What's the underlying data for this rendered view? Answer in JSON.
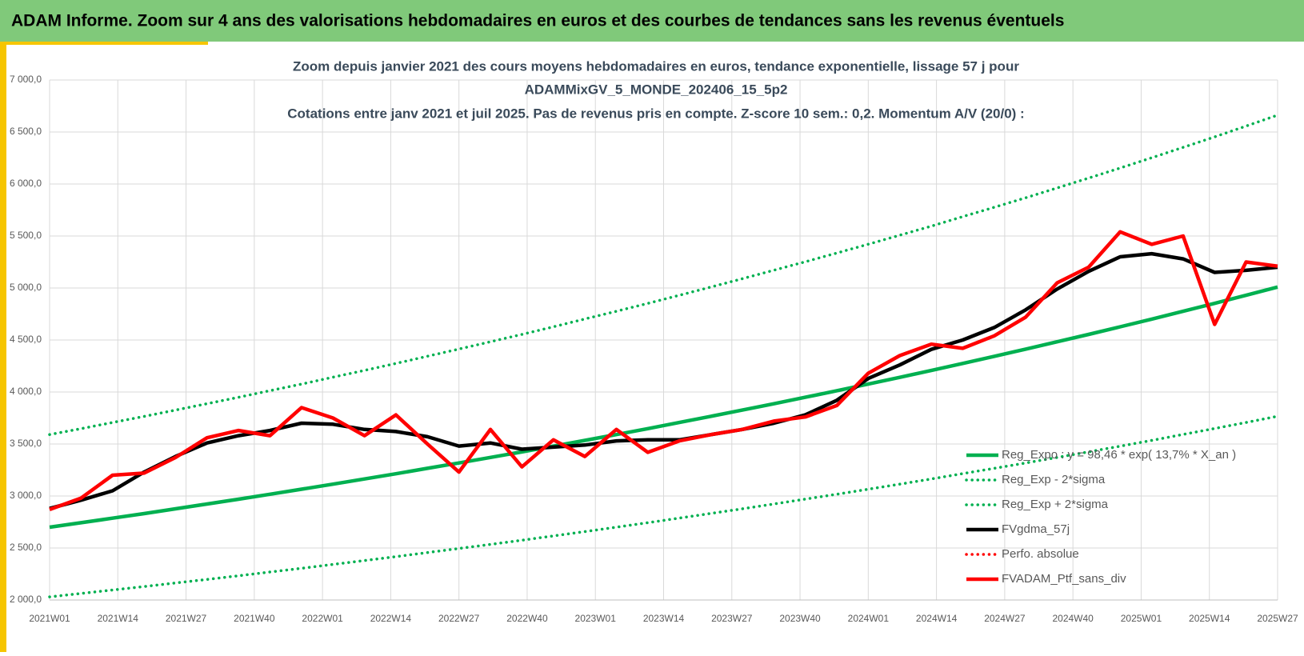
{
  "header": {
    "title": "ADAM Informe. Zoom sur 4 ans des valorisations hebdomadaires en euros et des courbes de tendances sans les revenus éventuels"
  },
  "chart_data": {
    "type": "line",
    "title": [
      "Zoom depuis janvier 2021 des cours moyens hebdomadaires  en euros, tendance exponentielle, lissage 57 j pour",
      "ADAMMixGV_5_MONDE_202406_15_5p2",
      "Cotations entre janv 2021 et juil 2025. Pas de revenus pris en compte. Z-score 10 sem.: 0,2. Momentum A/V (20/0) :"
    ],
    "x": [
      0,
      6,
      12,
      18,
      24,
      30,
      36,
      42,
      48,
      54,
      60,
      66,
      72,
      78,
      84,
      90,
      96,
      102,
      108,
      114,
      120,
      126,
      132,
      138,
      144,
      150,
      156,
      162,
      168,
      174,
      180,
      186,
      192,
      198,
      204,
      210,
      216,
      222,
      228,
      234
    ],
    "xlim": [
      0,
      234
    ],
    "xticks": [
      {
        "value": 0,
        "label": "2021W01"
      },
      {
        "value": 13,
        "label": "2021W14"
      },
      {
        "value": 26,
        "label": "2021W27"
      },
      {
        "value": 39,
        "label": "2021W40"
      },
      {
        "value": 52,
        "label": "2022W01"
      },
      {
        "value": 65,
        "label": "2022W14"
      },
      {
        "value": 78,
        "label": "2022W27"
      },
      {
        "value": 91,
        "label": "2022W40"
      },
      {
        "value": 104,
        "label": "2023W01"
      },
      {
        "value": 117,
        "label": "2023W14"
      },
      {
        "value": 130,
        "label": "2023W27"
      },
      {
        "value": 143,
        "label": "2023W40"
      },
      {
        "value": 156,
        "label": "2024W01"
      },
      {
        "value": 169,
        "label": "2024W14"
      },
      {
        "value": 182,
        "label": "2024W27"
      },
      {
        "value": 195,
        "label": "2024W40"
      },
      {
        "value": 208,
        "label": "2025W01"
      },
      {
        "value": 221,
        "label": "2025W14"
      },
      {
        "value": 234,
        "label": "2025W27"
      }
    ],
    "ylim": [
      2000,
      7000
    ],
    "yticks": [
      {
        "value": 2000,
        "label": "2 000,0"
      },
      {
        "value": 2500,
        "label": "2 500,0"
      },
      {
        "value": 3000,
        "label": "3 000,0"
      },
      {
        "value": 3500,
        "label": "3 500,0"
      },
      {
        "value": 4000,
        "label": "4 000,0"
      },
      {
        "value": 4500,
        "label": "4 500,0"
      },
      {
        "value": 5000,
        "label": "5 000,0"
      },
      {
        "value": 5500,
        "label": "5 500,0"
      },
      {
        "value": 6000,
        "label": "6 000,0"
      },
      {
        "value": 6500,
        "label": "6 500,0"
      },
      {
        "value": 7000,
        "label": "7 000,0"
      }
    ],
    "grid": true,
    "legend": "lower-right",
    "series": [
      {
        "name": "Reg_Expo : y = 98,46 * exp( 13,7% *  X_an )",
        "color": "#00b050",
        "style": "solid",
        "values": [
          2700,
          2743,
          2787,
          2831,
          2877,
          2923,
          2969,
          3017,
          3065,
          3114,
          3164,
          3214,
          3266,
          3318,
          3371,
          3424,
          3479,
          3535,
          3591,
          3648,
          3707,
          3766,
          3826,
          3887,
          3949,
          4012,
          4076,
          4141,
          4207,
          4275,
          4343,
          4412,
          4483,
          4554,
          4627,
          4701,
          4776,
          4852,
          4930,
          5009
        ]
      },
      {
        "name": "Reg_Exp - 2*sigma",
        "color": "#00b050",
        "style": "dotted",
        "values": [
          2030,
          2063,
          2096,
          2129,
          2164,
          2198,
          2233,
          2269,
          2305,
          2342,
          2379,
          2417,
          2456,
          2495,
          2535,
          2575,
          2616,
          2658,
          2700,
          2743,
          2788,
          2832,
          2877,
          2923,
          2970,
          3017,
          3065,
          3114,
          3164,
          3215,
          3266,
          3318,
          3371,
          3425,
          3479,
          3535,
          3592,
          3649,
          3707,
          3767
        ]
      },
      {
        "name": "Reg_Exp + 2*sigma",
        "color": "#00b050",
        "style": "dotted",
        "values": [
          3591,
          3648,
          3707,
          3765,
          3826,
          3888,
          3949,
          4013,
          4076,
          4142,
          4208,
          4275,
          4344,
          4413,
          4483,
          4554,
          4627,
          4702,
          4776,
          4852,
          4930,
          5009,
          5089,
          5171,
          5252,
          5336,
          5421,
          5508,
          5595,
          5686,
          5776,
          5868,
          5962,
          6057,
          6154,
          6252,
          6352,
          6453,
          6557,
          6662
        ]
      },
      {
        "name": "FVgdma_57j",
        "color": "#000000",
        "style": "solid",
        "values": [
          2880,
          2960,
          3050,
          3230,
          3380,
          3510,
          3580,
          3630,
          3700,
          3690,
          3640,
          3620,
          3570,
          3480,
          3510,
          3450,
          3470,
          3490,
          3530,
          3540,
          3540,
          3590,
          3640,
          3700,
          3780,
          3920,
          4130,
          4260,
          4410,
          4500,
          4620,
          4790,
          4990,
          5160,
          5300,
          5330,
          5280,
          5150,
          5170,
          5200
        ]
      },
      {
        "name": "Perfo. absolue",
        "color": "#ff0000",
        "style": "dotted",
        "values": [
          null,
          null,
          null,
          null,
          null,
          null,
          null,
          null,
          null,
          null,
          null,
          null,
          null,
          null,
          null,
          null,
          null,
          null,
          null,
          null,
          null,
          null,
          null,
          null,
          null,
          null,
          null,
          null,
          null,
          null,
          null,
          null,
          null,
          null,
          null,
          null,
          null,
          null,
          null,
          null
        ]
      },
      {
        "name": "FVADAM_Ptf_sans_div",
        "color": "#ff0000",
        "style": "solid",
        "values": [
          2870,
          2980,
          3200,
          3220,
          3370,
          3560,
          3630,
          3580,
          3850,
          3750,
          3580,
          3780,
          3500,
          3230,
          3640,
          3280,
          3540,
          3380,
          3640,
          3420,
          3530,
          3590,
          3640,
          3720,
          3760,
          3870,
          4180,
          4350,
          4460,
          4420,
          4540,
          4720,
          5050,
          5200,
          5540,
          5420,
          5500,
          4650,
          5250,
          5210
        ]
      }
    ]
  }
}
